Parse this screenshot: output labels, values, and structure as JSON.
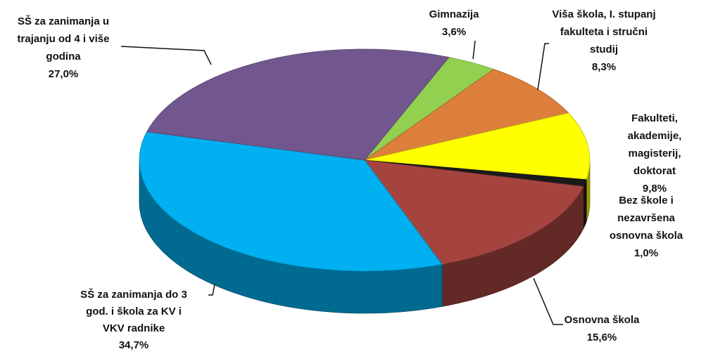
{
  "chart_data": {
    "type": "pie3d",
    "categories": [
      "Gimnazija",
      "Viša škola, I. stupanj\nfakulteta i stručni\nstudij",
      "Fakulteti, akademije,\nmagisterij, doktorat",
      "Bez škole i nezavršena\nosnovna škola",
      "Osnovna škola",
      "SŠ za zanimanja do 3\ngod. i škola za KV i\nVKV radnike",
      "SŠ za zanimanja u\ntrajanju od 4 i više\ngodina"
    ],
    "values": [
      3.6,
      8.3,
      9.8,
      1.0,
      15.6,
      34.7,
      27.0
    ],
    "value_labels": [
      "3,6%",
      "8,3%",
      "9,8%",
      "1,0%",
      "15,6%",
      "34,7%",
      "27,0%"
    ],
    "colors": [
      "#92d050",
      "#dc7f3c",
      "#ffff00",
      "#1a1a1a",
      "#a5443f",
      "#00b0f0",
      "#72578f"
    ]
  }
}
